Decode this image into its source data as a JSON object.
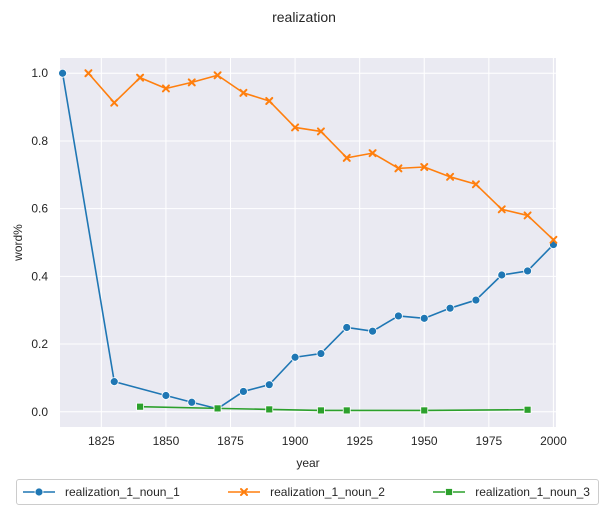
{
  "chart_data": {
    "type": "line",
    "title": "realization",
    "xlabel": "year",
    "ylabel": "word%",
    "xlim": [
      1809,
      2001
    ],
    "ylim": [
      -0.045,
      1.045
    ],
    "x_ticks": [
      1825,
      1850,
      1875,
      1900,
      1925,
      1950,
      1975,
      2000
    ],
    "y_ticks": [
      0.0,
      0.2,
      0.4,
      0.6,
      0.8,
      1.0
    ],
    "y_tick_labels": [
      "0.0",
      "0.2",
      "0.4",
      "0.6",
      "0.8",
      "1.0"
    ],
    "grid": true,
    "legend_position": "bottom",
    "series": [
      {
        "name": "realization_1_noun_1",
        "color": "#1f77b4",
        "marker": "circle",
        "x": [
          1810,
          1830,
          1850,
          1860,
          1870,
          1880,
          1890,
          1900,
          1910,
          1920,
          1930,
          1940,
          1950,
          1960,
          1970,
          1980,
          1990,
          2000
        ],
        "y": [
          1.0,
          0.089,
          0.048,
          0.028,
          0.009,
          0.06,
          0.08,
          0.161,
          0.172,
          0.249,
          0.238,
          0.283,
          0.276,
          0.306,
          0.33,
          0.404,
          0.416,
          0.494
        ]
      },
      {
        "name": "realization_1_noun_2",
        "color": "#ff7f0e",
        "marker": "x",
        "x": [
          1820,
          1830,
          1840,
          1850,
          1860,
          1870,
          1880,
          1890,
          1900,
          1910,
          1920,
          1930,
          1940,
          1950,
          1960,
          1970,
          1980,
          1990,
          2000
        ],
        "y": [
          1.0,
          0.913,
          0.987,
          0.955,
          0.973,
          0.994,
          0.942,
          0.918,
          0.84,
          0.828,
          0.75,
          0.764,
          0.719,
          0.723,
          0.694,
          0.672,
          0.598,
          0.58,
          0.508
        ]
      },
      {
        "name": "realization_1_noun_3",
        "color": "#2ca02c",
        "marker": "square",
        "x": [
          1840,
          1870,
          1890,
          1910,
          1920,
          1950,
          1990
        ],
        "y": [
          0.015,
          0.01,
          0.007,
          0.004,
          0.004,
          0.004,
          0.006
        ]
      }
    ]
  }
}
